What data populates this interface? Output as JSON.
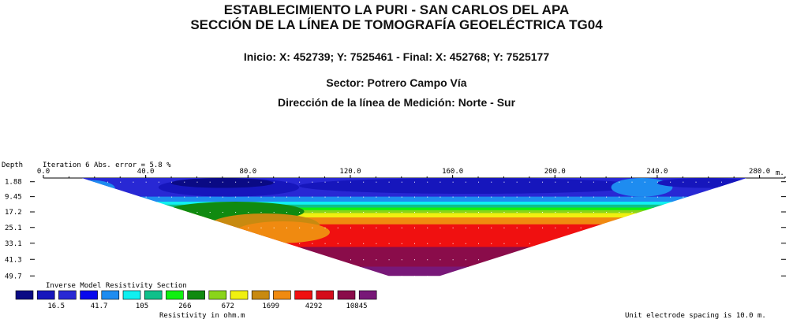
{
  "header": {
    "title_line1": "ESTABLECIMIENTO LA PURI - SAN CARLOS DEL APA",
    "title_line2": "SECCIÓN DE LA LÍNEA DE TOMOGRAFÍA GEOELÉCTRICA TG04",
    "coords": "Inicio: X: 452739; Y: 7525461 - Final: X: 452768; Y: 7525177",
    "sector": "Sector: Potrero Campo Vía",
    "direction": "Dirección de la línea de Medición: Norte - Sur"
  },
  "section": {
    "depth_label": "Depth",
    "iteration_label": "Iteration 6 Abs. error = 5.8 %",
    "x_unit": "m.",
    "legend_title": "Inverse Model Resistivity Section",
    "legend_unit_label": "Resistivity in ohm.m",
    "spacing_note": "Unit electrode spacing is 10.0 m."
  },
  "chart_data": {
    "type": "heatmap",
    "x_ticks": [
      "0.0",
      "40.0",
      "80.0",
      "120.0",
      "160.0",
      "200.0",
      "240.0",
      "280.0"
    ],
    "x_tick_values": [
      0,
      40,
      80,
      120,
      160,
      200,
      240,
      280
    ],
    "xlim": [
      0,
      290
    ],
    "y_ticks": [
      "1.88",
      "9.45",
      "17.2",
      "25.1",
      "33.1",
      "41.3",
      "49.7"
    ],
    "y_tick_values": [
      1.88,
      9.45,
      17.2,
      25.1,
      33.1,
      41.3,
      49.7
    ],
    "ylim": [
      0,
      51.6
    ],
    "section_top_x": [
      15,
      275
    ],
    "section_bottom_x": [
      135,
      155
    ],
    "section_max_depth": 49.7,
    "colorbar": {
      "colors": [
        "#0a0a84",
        "#1616bc",
        "#2828d4",
        "#0808ee",
        "#1e8cf0",
        "#10f0f0",
        "#10c08a",
        "#10f010",
        "#108a10",
        "#8ad41a",
        "#f0f010",
        "#c88a10",
        "#f08a10",
        "#f01010",
        "#d40c1a",
        "#8a0c4a",
        "#781878"
      ],
      "labels": [
        "16.5",
        "41.7",
        "105",
        "266",
        "672",
        "1699",
        "4292",
        "10845"
      ],
      "label_after_index": [
        1,
        3,
        5,
        7,
        9,
        11,
        13,
        15
      ]
    },
    "layers": [
      {
        "depth_top": 0,
        "depth_bottom": 9.45,
        "color": "#2828d4"
      },
      {
        "depth_top": 9.45,
        "depth_bottom": 12,
        "color": "#1e8cf0"
      },
      {
        "depth_top": 12,
        "depth_bottom": 13.5,
        "color": "#10f0f0"
      },
      {
        "depth_top": 13.5,
        "depth_bottom": 15,
        "color": "#10c08a"
      },
      {
        "depth_top": 15,
        "depth_bottom": 16.3,
        "color": "#10f010"
      },
      {
        "depth_top": 16.3,
        "depth_bottom": 17.8,
        "color": "#8ad41a"
      },
      {
        "depth_top": 17.8,
        "depth_bottom": 20,
        "color": "#f0f010"
      },
      {
        "depth_top": 20,
        "depth_bottom": 23.5,
        "color": "#f08a10"
      },
      {
        "depth_top": 23.5,
        "depth_bottom": 35,
        "color": "#f01010"
      },
      {
        "depth_top": 35,
        "depth_bottom": 45,
        "color": "#8a0c4a"
      },
      {
        "depth_top": 45,
        "depth_bottom": 51.6,
        "color": "#781878"
      }
    ],
    "bodies": [
      {
        "x": [
          45,
          100
        ],
        "depth": [
          0,
          9.45
        ],
        "color": "#1616bc"
      },
      {
        "x": [
          50,
          90
        ],
        "depth": [
          0,
          5
        ],
        "color": "#0a0a84"
      },
      {
        "x": [
          100,
          235
        ],
        "depth": [
          0,
          8
        ],
        "color": "#1616bc"
      },
      {
        "x": [
          8,
          28
        ],
        "depth": [
          1,
          9.45
        ],
        "color": "#1e8cf0"
      },
      {
        "x": [
          222,
          246
        ],
        "depth": [
          0,
          9.45
        ],
        "color": "#1e8cf0"
      },
      {
        "x": [
          240,
          278
        ],
        "depth": [
          0,
          5
        ],
        "color": "#1616bc"
      },
      {
        "x": [
          48,
          102
        ],
        "depth": [
          12,
          22
        ],
        "color": "#108a10"
      },
      {
        "x": [
          65,
          108
        ],
        "depth": [
          18,
          30
        ],
        "color": "#c88a10"
      },
      {
        "x": [
          75,
          112
        ],
        "depth": [
          22,
          33
        ],
        "color": "#f08a10"
      }
    ]
  }
}
